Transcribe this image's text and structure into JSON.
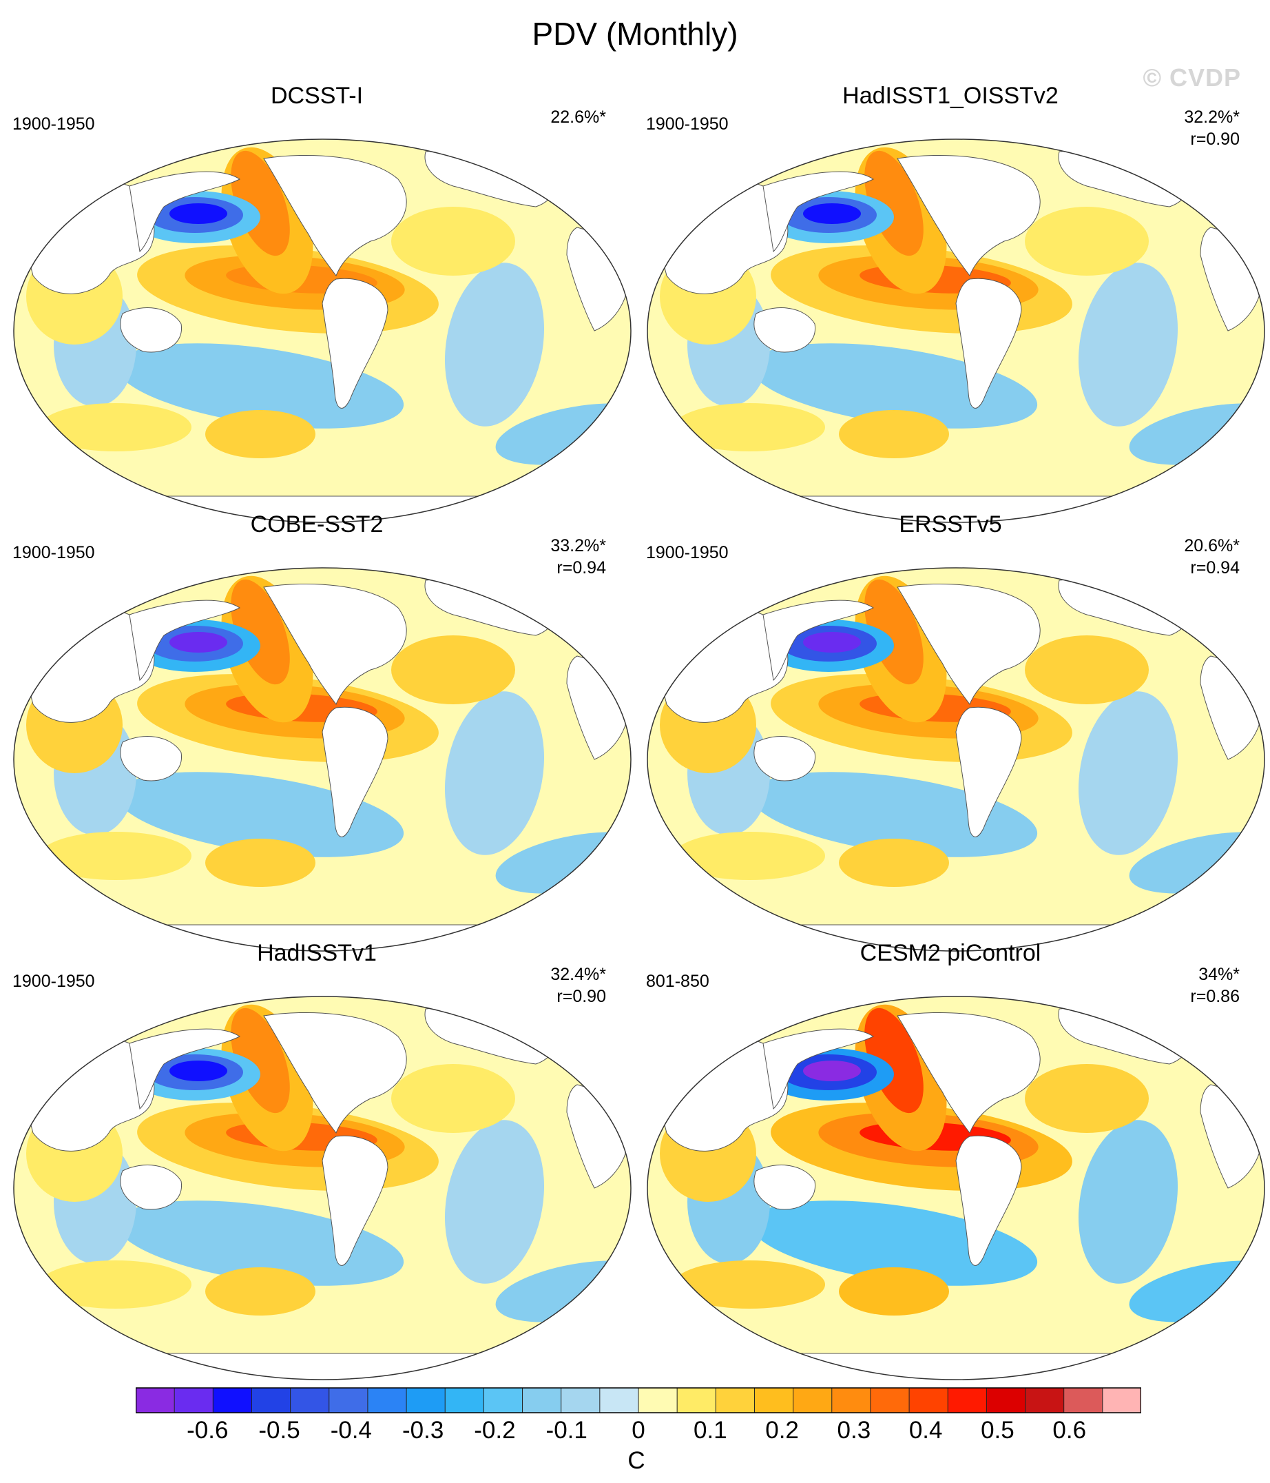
{
  "figure": {
    "title": "PDV (Monthly)",
    "watermark": "© CVDP"
  },
  "panels": [
    {
      "title": "DCSST-I",
      "period": "1900-1950",
      "pct": "22.6%*",
      "r": ""
    },
    {
      "title": "HadISST1_OISSTv2",
      "period": "1900-1950",
      "pct": "32.2%*",
      "r": "r=0.90"
    },
    {
      "title": "COBE-SST2",
      "period": "1900-1950",
      "pct": "33.2%*",
      "r": "r=0.94"
    },
    {
      "title": "ERSSTv5",
      "period": "1900-1950",
      "pct": "20.6%*",
      "r": "r=0.94"
    },
    {
      "title": "HadISSTv1",
      "period": "1900-1950",
      "pct": "32.4%*",
      "r": "r=0.90"
    },
    {
      "title": "CESM2 piControl",
      "period": "801-850",
      "pct": "34%*",
      "r": "r=0.86"
    }
  ],
  "colorbar": {
    "unit": "C",
    "tick_labels": [
      "-0.6",
      "-0.5",
      "-0.4",
      "-0.3",
      "-0.2",
      "-0.1",
      "0",
      "0.1",
      "0.2",
      "0.3",
      "0.4",
      "0.5",
      "0.6"
    ],
    "tick_values": [
      -0.6,
      -0.5,
      -0.4,
      -0.3,
      -0.2,
      -0.1,
      0,
      0.1,
      0.2,
      0.3,
      0.4,
      0.5,
      0.6
    ],
    "range": [
      -0.7,
      0.7
    ],
    "colors": [
      "#8a2be2",
      "#6a2cf0",
      "#1010ff",
      "#2242e6",
      "#3355e6",
      "#3f6de8",
      "#2b83f5",
      "#1e9cf5",
      "#33b5f5",
      "#5bc5f5",
      "#86cdef",
      "#a5d6ef",
      "#c8e6f5",
      "#fffbb3",
      "#ffeb66",
      "#ffd23b",
      "#ffbe1e",
      "#ffa814",
      "#ff8c0f",
      "#ff6a0a",
      "#ff4300",
      "#ff1a00",
      "#dc0000",
      "#c81414",
      "#dc5a5a",
      "#ffb4b4"
    ]
  }
}
